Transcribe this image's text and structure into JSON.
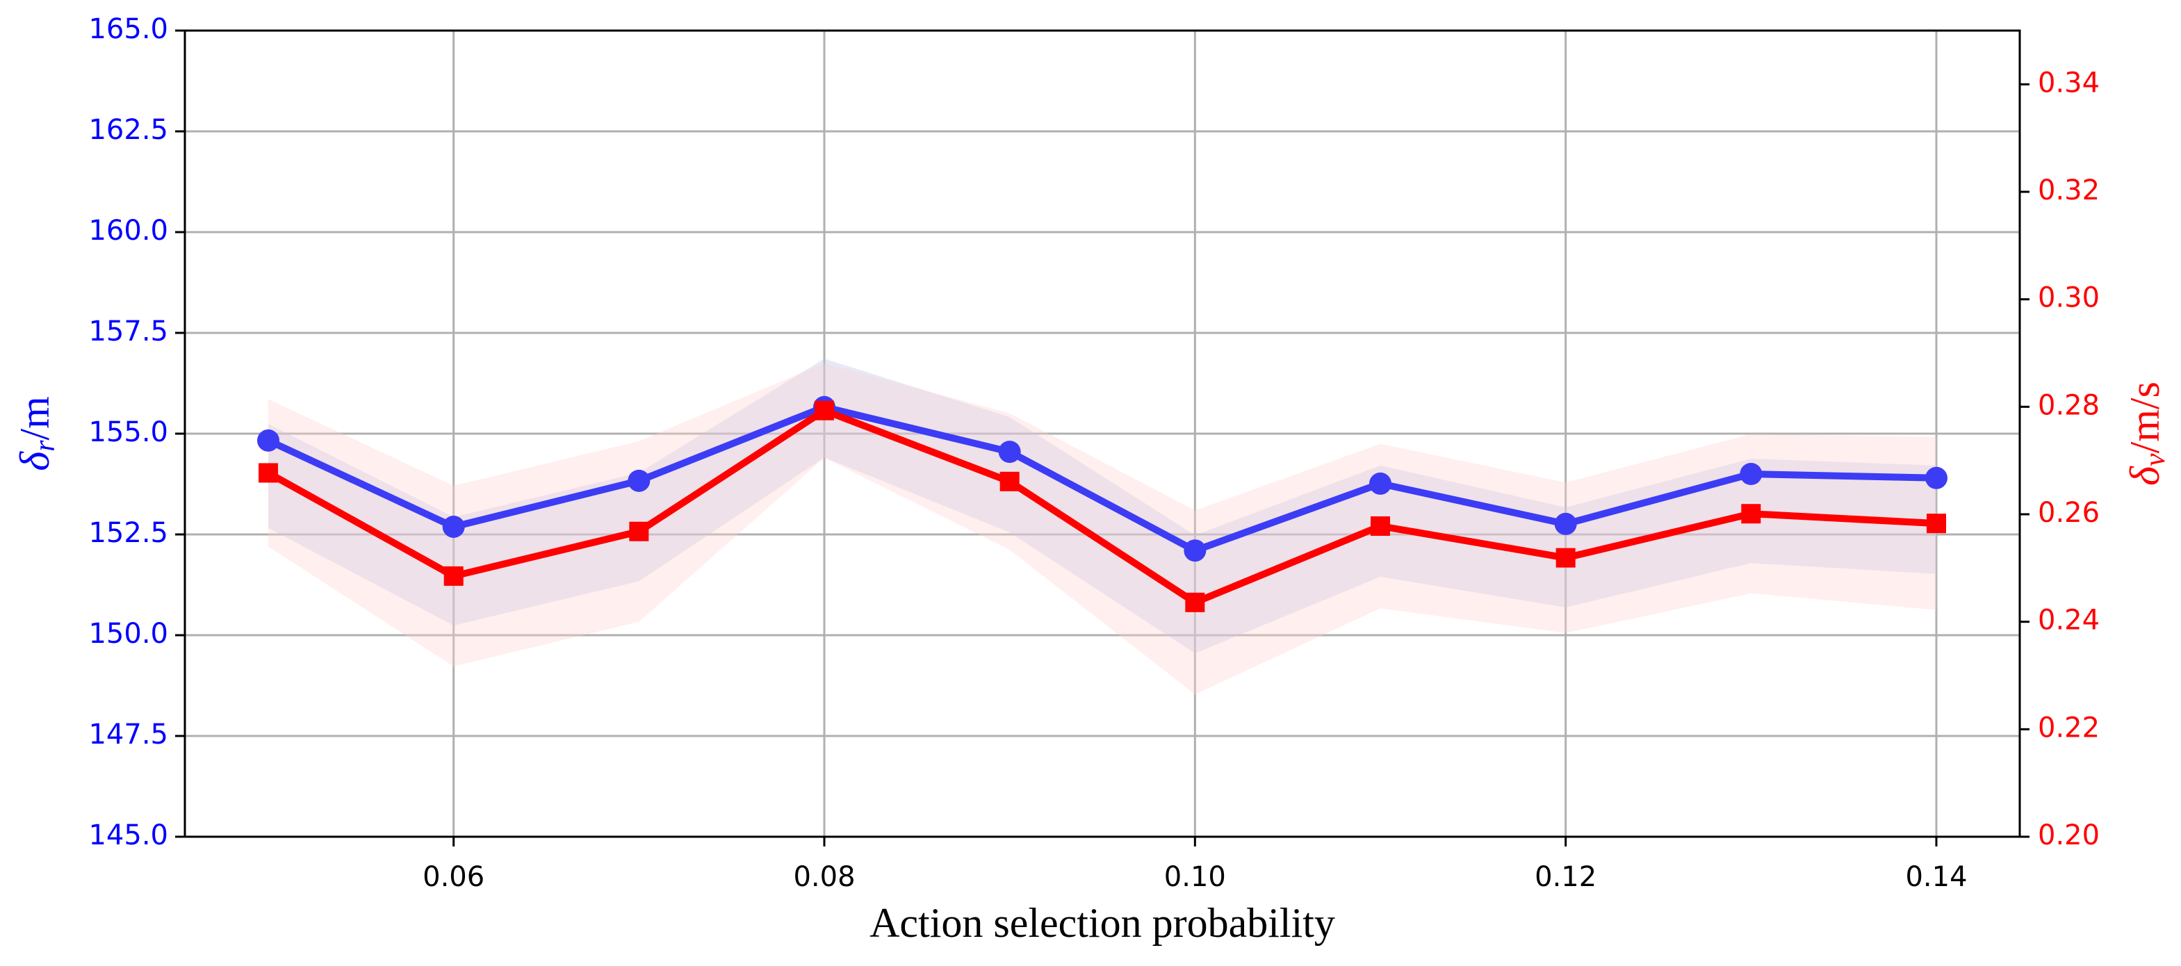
{
  "chart_data": {
    "type": "line",
    "x": [
      0.05,
      0.06,
      0.07,
      0.08,
      0.09,
      0.1,
      0.11,
      0.12,
      0.13,
      0.14
    ],
    "xlim": [
      0.0455,
      0.1445
    ],
    "xticks": [
      0.06,
      0.08,
      {
        "value": 0.1,
        "label": "0.10"
      },
      0.12,
      0.14
    ],
    "xlabel": "Action selection probability",
    "ylim": [
      145,
      165
    ],
    "yticks": [
      {
        "value": 145,
        "label": "145.0"
      },
      147.5,
      {
        "value": 150,
        "label": "150.0"
      },
      152.5,
      {
        "value": 155,
        "label": "155.0"
      },
      157.5,
      {
        "value": 160,
        "label": "160.0"
      },
      162.5,
      {
        "value": 165,
        "label": "165.0"
      }
    ],
    "ylabel": {
      "symbol": "δ",
      "subscript": "r",
      "unit": "/m"
    },
    "y2lim": [
      0.2,
      0.35
    ],
    "y2ticks": [
      {
        "value": 0.2,
        "label": "0.20"
      },
      0.22,
      0.24,
      0.26,
      0.28,
      {
        "value": 0.3,
        "label": "0.30"
      },
      0.32,
      0.34
    ],
    "y2label": {
      "symbol": "δ",
      "subscript": "v",
      "unit": "/m/s"
    },
    "grid": true,
    "series": [
      {
        "color": "#3c3cf5",
        "marker": "circle",
        "values": [
          154.83,
          152.69,
          153.83,
          155.66,
          154.55,
          152.1,
          153.76,
          152.76,
          154.0,
          153.9
        ],
        "band_lower": [
          152.66,
          150.24,
          151.34,
          154.41,
          152.55,
          149.55,
          151.45,
          150.69,
          151.79,
          151.52
        ],
        "band_upper": [
          155.24,
          152.93,
          154.03,
          156.86,
          155.41,
          152.48,
          154.21,
          153.17,
          154.38,
          154.21
        ],
        "band_color": "#b4c2e4"
      },
      {
        "color": "#ff0000",
        "marker": "square",
        "axis": "y2",
        "values": [
          0.2677,
          0.2485,
          0.2568,
          0.2793,
          0.2661,
          0.2436,
          0.2578,
          0.2519,
          0.2601,
          0.2583
        ],
        "band_lower": [
          0.254,
          0.2317,
          0.24,
          0.2705,
          0.2534,
          0.2265,
          0.2425,
          0.2379,
          0.2453,
          0.2422
        ],
        "band_upper": [
          0.2814,
          0.2653,
          0.2736,
          0.2881,
          0.2788,
          0.2607,
          0.2731,
          0.2659,
          0.2749,
          0.2744
        ],
        "band_color": "#ffd0d0"
      }
    ]
  }
}
